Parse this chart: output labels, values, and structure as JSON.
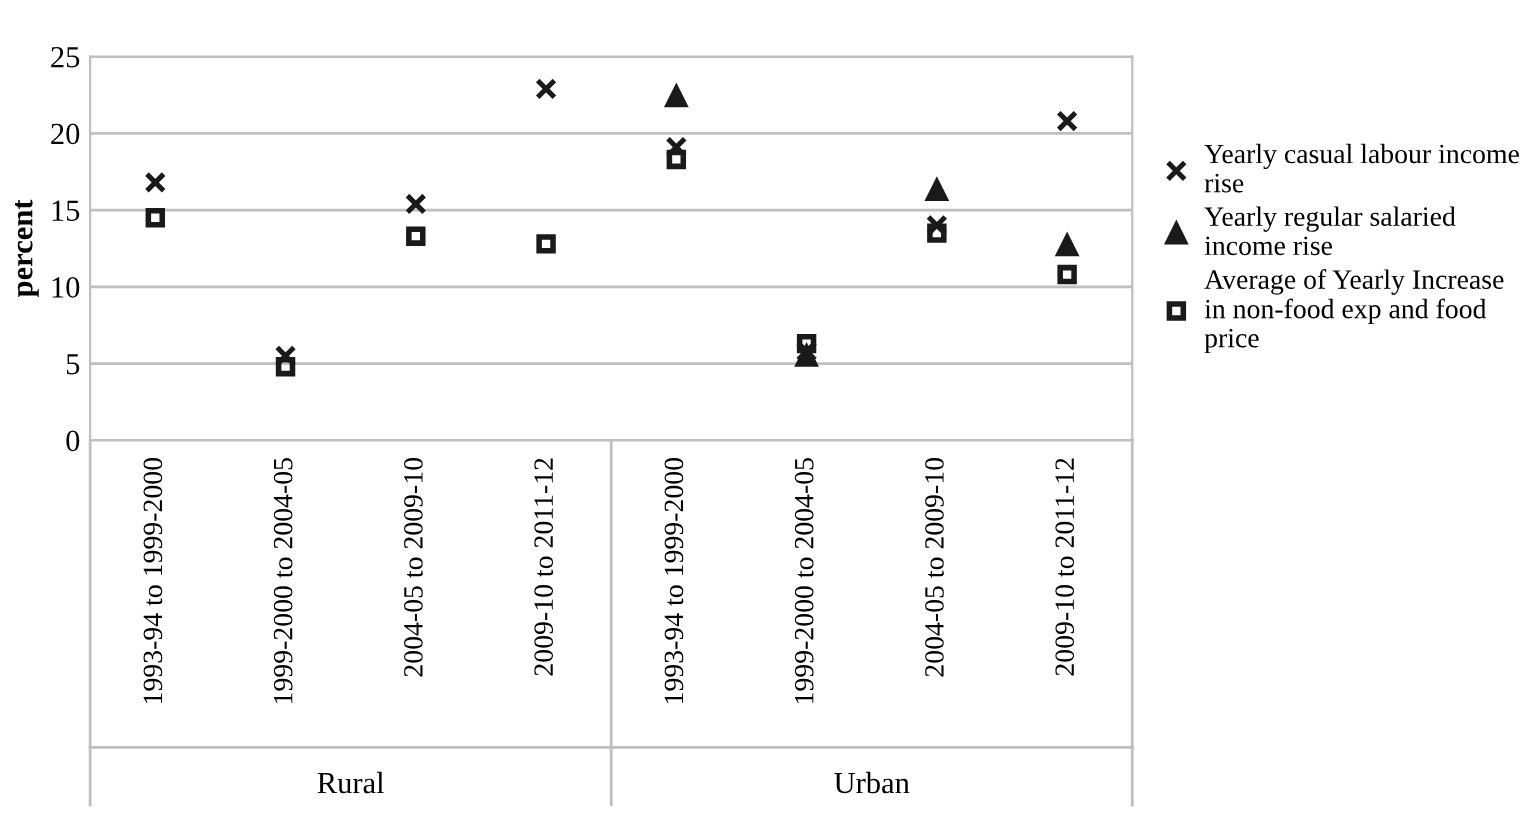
{
  "chart_data": {
    "type": "scatter",
    "ylabel": "percent",
    "categories": [
      "1993-94 to 1999-2000",
      "1999-2000 to 2004-05",
      "2004-05 to 2009-10",
      "2009-10 to 2011-12",
      "1993-94 to 1999-2000",
      "1999-2000 to 2004-05",
      "2004-05 to 2009-10",
      "2009-10 to 2011-12"
    ],
    "series": [
      {
        "name": "Yearly casual labour income rise",
        "color": "#1a1a1a",
        "marker": "cross",
        "values": [
          16.8,
          5.5,
          15.4,
          22.9,
          19.1,
          5.8,
          14.0,
          20.8
        ]
      },
      {
        "name": "Yearly regular salaried income rise",
        "color": "#1a1a1a",
        "marker": "triangle",
        "values": [
          null,
          null,
          null,
          null,
          22.4,
          5.5,
          16.3,
          12.7
        ]
      },
      {
        "name": "Average of Yearly Increase in non-food exp and food price",
        "color": "#1a1a1a",
        "marker": "square",
        "values": [
          14.5,
          4.8,
          13.3,
          12.8,
          18.3,
          6.3,
          13.5,
          10.8
        ]
      }
    ],
    "annotations": [
      "Rural",
      "Urban"
    ],
    "ylim": [
      0,
      25
    ],
    "yticks": [
      0,
      5,
      10,
      15,
      20,
      25
    ],
    "grid": "y",
    "legend": "right"
  }
}
